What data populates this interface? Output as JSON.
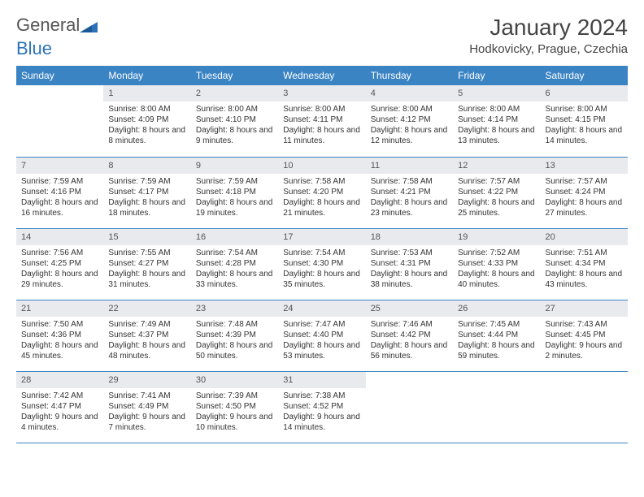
{
  "logo": {
    "word1": "General",
    "word2": "Blue"
  },
  "title": "January 2024",
  "location": "Hodkovicky, Prague, Czechia",
  "colors": {
    "header_bg": "#3b84c4",
    "header_text": "#ffffff",
    "daynum_bg": "#e8eaed",
    "border": "#3b84c4",
    "logo_blue": "#2d72b8"
  },
  "weekdays": [
    "Sunday",
    "Monday",
    "Tuesday",
    "Wednesday",
    "Thursday",
    "Friday",
    "Saturday"
  ],
  "weeks": [
    [
      {
        "n": "",
        "sr": "",
        "ss": "",
        "dl": ""
      },
      {
        "n": "1",
        "sr": "Sunrise: 8:00 AM",
        "ss": "Sunset: 4:09 PM",
        "dl": "Daylight: 8 hours and 8 minutes."
      },
      {
        "n": "2",
        "sr": "Sunrise: 8:00 AM",
        "ss": "Sunset: 4:10 PM",
        "dl": "Daylight: 8 hours and 9 minutes."
      },
      {
        "n": "3",
        "sr": "Sunrise: 8:00 AM",
        "ss": "Sunset: 4:11 PM",
        "dl": "Daylight: 8 hours and 11 minutes."
      },
      {
        "n": "4",
        "sr": "Sunrise: 8:00 AM",
        "ss": "Sunset: 4:12 PM",
        "dl": "Daylight: 8 hours and 12 minutes."
      },
      {
        "n": "5",
        "sr": "Sunrise: 8:00 AM",
        "ss": "Sunset: 4:14 PM",
        "dl": "Daylight: 8 hours and 13 minutes."
      },
      {
        "n": "6",
        "sr": "Sunrise: 8:00 AM",
        "ss": "Sunset: 4:15 PM",
        "dl": "Daylight: 8 hours and 14 minutes."
      }
    ],
    [
      {
        "n": "7",
        "sr": "Sunrise: 7:59 AM",
        "ss": "Sunset: 4:16 PM",
        "dl": "Daylight: 8 hours and 16 minutes."
      },
      {
        "n": "8",
        "sr": "Sunrise: 7:59 AM",
        "ss": "Sunset: 4:17 PM",
        "dl": "Daylight: 8 hours and 18 minutes."
      },
      {
        "n": "9",
        "sr": "Sunrise: 7:59 AM",
        "ss": "Sunset: 4:18 PM",
        "dl": "Daylight: 8 hours and 19 minutes."
      },
      {
        "n": "10",
        "sr": "Sunrise: 7:58 AM",
        "ss": "Sunset: 4:20 PM",
        "dl": "Daylight: 8 hours and 21 minutes."
      },
      {
        "n": "11",
        "sr": "Sunrise: 7:58 AM",
        "ss": "Sunset: 4:21 PM",
        "dl": "Daylight: 8 hours and 23 minutes."
      },
      {
        "n": "12",
        "sr": "Sunrise: 7:57 AM",
        "ss": "Sunset: 4:22 PM",
        "dl": "Daylight: 8 hours and 25 minutes."
      },
      {
        "n": "13",
        "sr": "Sunrise: 7:57 AM",
        "ss": "Sunset: 4:24 PM",
        "dl": "Daylight: 8 hours and 27 minutes."
      }
    ],
    [
      {
        "n": "14",
        "sr": "Sunrise: 7:56 AM",
        "ss": "Sunset: 4:25 PM",
        "dl": "Daylight: 8 hours and 29 minutes."
      },
      {
        "n": "15",
        "sr": "Sunrise: 7:55 AM",
        "ss": "Sunset: 4:27 PM",
        "dl": "Daylight: 8 hours and 31 minutes."
      },
      {
        "n": "16",
        "sr": "Sunrise: 7:54 AM",
        "ss": "Sunset: 4:28 PM",
        "dl": "Daylight: 8 hours and 33 minutes."
      },
      {
        "n": "17",
        "sr": "Sunrise: 7:54 AM",
        "ss": "Sunset: 4:30 PM",
        "dl": "Daylight: 8 hours and 35 minutes."
      },
      {
        "n": "18",
        "sr": "Sunrise: 7:53 AM",
        "ss": "Sunset: 4:31 PM",
        "dl": "Daylight: 8 hours and 38 minutes."
      },
      {
        "n": "19",
        "sr": "Sunrise: 7:52 AM",
        "ss": "Sunset: 4:33 PM",
        "dl": "Daylight: 8 hours and 40 minutes."
      },
      {
        "n": "20",
        "sr": "Sunrise: 7:51 AM",
        "ss": "Sunset: 4:34 PM",
        "dl": "Daylight: 8 hours and 43 minutes."
      }
    ],
    [
      {
        "n": "21",
        "sr": "Sunrise: 7:50 AM",
        "ss": "Sunset: 4:36 PM",
        "dl": "Daylight: 8 hours and 45 minutes."
      },
      {
        "n": "22",
        "sr": "Sunrise: 7:49 AM",
        "ss": "Sunset: 4:37 PM",
        "dl": "Daylight: 8 hours and 48 minutes."
      },
      {
        "n": "23",
        "sr": "Sunrise: 7:48 AM",
        "ss": "Sunset: 4:39 PM",
        "dl": "Daylight: 8 hours and 50 minutes."
      },
      {
        "n": "24",
        "sr": "Sunrise: 7:47 AM",
        "ss": "Sunset: 4:40 PM",
        "dl": "Daylight: 8 hours and 53 minutes."
      },
      {
        "n": "25",
        "sr": "Sunrise: 7:46 AM",
        "ss": "Sunset: 4:42 PM",
        "dl": "Daylight: 8 hours and 56 minutes."
      },
      {
        "n": "26",
        "sr": "Sunrise: 7:45 AM",
        "ss": "Sunset: 4:44 PM",
        "dl": "Daylight: 8 hours and 59 minutes."
      },
      {
        "n": "27",
        "sr": "Sunrise: 7:43 AM",
        "ss": "Sunset: 4:45 PM",
        "dl": "Daylight: 9 hours and 2 minutes."
      }
    ],
    [
      {
        "n": "28",
        "sr": "Sunrise: 7:42 AM",
        "ss": "Sunset: 4:47 PM",
        "dl": "Daylight: 9 hours and 4 minutes."
      },
      {
        "n": "29",
        "sr": "Sunrise: 7:41 AM",
        "ss": "Sunset: 4:49 PM",
        "dl": "Daylight: 9 hours and 7 minutes."
      },
      {
        "n": "30",
        "sr": "Sunrise: 7:39 AM",
        "ss": "Sunset: 4:50 PM",
        "dl": "Daylight: 9 hours and 10 minutes."
      },
      {
        "n": "31",
        "sr": "Sunrise: 7:38 AM",
        "ss": "Sunset: 4:52 PM",
        "dl": "Daylight: 9 hours and 14 minutes."
      },
      {
        "n": "",
        "sr": "",
        "ss": "",
        "dl": ""
      },
      {
        "n": "",
        "sr": "",
        "ss": "",
        "dl": ""
      },
      {
        "n": "",
        "sr": "",
        "ss": "",
        "dl": ""
      }
    ]
  ]
}
